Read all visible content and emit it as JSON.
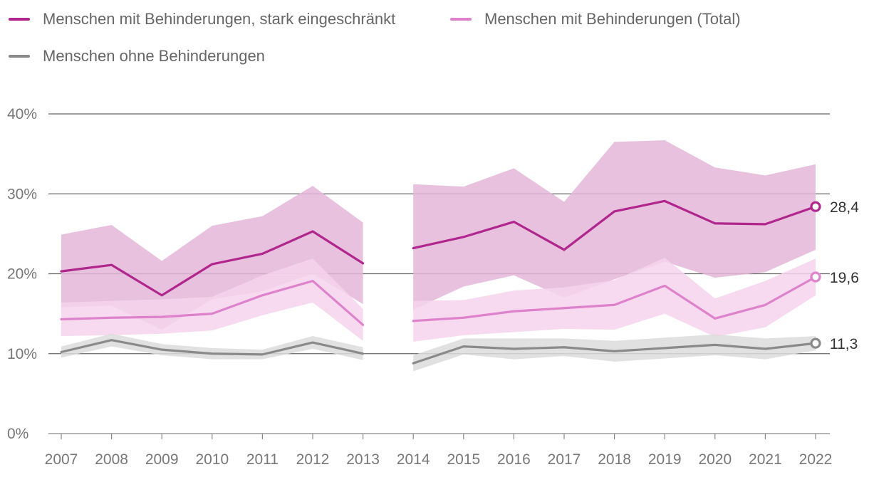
{
  "chart_data": {
    "type": "line",
    "title": "",
    "xlabel": "",
    "ylabel": "",
    "ylim": [
      0,
      40
    ],
    "yticks": [
      0,
      10,
      20,
      30,
      40
    ],
    "ytick_labels": [
      "0%",
      "10%",
      "20%",
      "30%",
      "40%"
    ],
    "x": [
      2007,
      2008,
      2009,
      2010,
      2011,
      2012,
      2013,
      2014,
      2015,
      2016,
      2017,
      2018,
      2019,
      2020,
      2021,
      2022
    ],
    "x_labels": [
      "2007",
      "2008",
      "2009",
      "2010",
      "2011",
      "2012",
      "2013",
      "2014",
      "2015",
      "2016",
      "2017",
      "2018",
      "2019",
      "2020",
      "2021",
      "2022"
    ],
    "gap_after": 2013,
    "grid": true,
    "legend_position": "top-left",
    "series": [
      {
        "name": "Menschen mit Behinderungen, stark eingeschränkt",
        "color": "#b0268c",
        "band_color": "#e3b6d8",
        "values": [
          20.3,
          21.1,
          17.3,
          21.2,
          22.5,
          25.3,
          21.3,
          23.2,
          24.6,
          26.5,
          23.0,
          27.8,
          29.1,
          26.3,
          26.2,
          28.4
        ],
        "lower": [
          15.8,
          16.0,
          13.0,
          16.8,
          17.8,
          20.0,
          16.2,
          15.5,
          18.4,
          19.8,
          17.0,
          19.3,
          21.5,
          19.5,
          20.2,
          23.0
        ],
        "upper": [
          24.9,
          26.1,
          21.6,
          26.0,
          27.2,
          31.0,
          26.4,
          31.2,
          30.9,
          33.2,
          29.0,
          36.5,
          36.7,
          33.3,
          32.3,
          33.7
        ],
        "end_label": "28,4"
      },
      {
        "name": "Menschen mit Behinderungen (Total)",
        "color": "#de82cb",
        "band_color": "#f6d4ec",
        "values": [
          14.3,
          14.5,
          14.6,
          15.0,
          17.3,
          19.1,
          13.6,
          14.1,
          14.5,
          15.3,
          15.7,
          16.1,
          18.5,
          14.4,
          16.1,
          19.6
        ],
        "lower": [
          12.2,
          12.3,
          12.5,
          12.9,
          14.8,
          16.4,
          11.6,
          11.5,
          12.3,
          12.7,
          13.1,
          13.0,
          15.0,
          12.1,
          13.3,
          17.3
        ],
        "upper": [
          16.4,
          16.6,
          16.8,
          17.1,
          19.8,
          21.9,
          15.6,
          16.6,
          16.7,
          17.9,
          18.3,
          19.2,
          22.0,
          16.9,
          19.1,
          21.9
        ],
        "end_label": "19,6"
      },
      {
        "name": "Menschen ohne Behinderungen",
        "color": "#8a8a8a",
        "band_color": "#dcdcdc",
        "values": [
          10.2,
          11.7,
          10.5,
          10.0,
          9.9,
          11.4,
          10.0,
          8.8,
          10.9,
          10.6,
          10.8,
          10.3,
          10.7,
          11.1,
          10.6,
          11.3
        ],
        "lower": [
          9.5,
          10.9,
          9.8,
          9.3,
          9.3,
          10.6,
          9.2,
          7.8,
          9.9,
          9.3,
          9.7,
          9.0,
          9.4,
          9.8,
          9.3,
          10.4
        ],
        "upper": [
          10.9,
          12.5,
          11.2,
          10.7,
          10.5,
          12.2,
          10.8,
          9.8,
          11.9,
          11.9,
          11.9,
          11.6,
          12.0,
          12.4,
          11.9,
          12.2
        ],
        "end_label": "11,3"
      }
    ]
  }
}
